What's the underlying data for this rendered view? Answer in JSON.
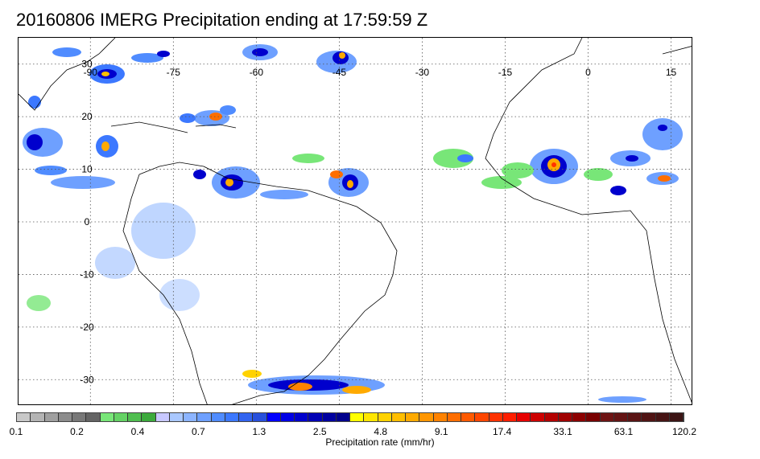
{
  "title": "20160806 IMERG Precipitation ending at 17:59:59 Z",
  "map": {
    "longitude_labels": [
      {
        "text": "-90",
        "lon": -90
      },
      {
        "text": "-75",
        "lon": -75
      },
      {
        "text": "-60",
        "lon": -60
      },
      {
        "text": "-45",
        "lon": -45
      },
      {
        "text": "-30",
        "lon": -30
      },
      {
        "text": "-15",
        "lon": -15
      },
      {
        "text": "0",
        "lon": 0
      },
      {
        "text": "15",
        "lon": 15
      }
    ],
    "latitude_labels": [
      {
        "text": "30",
        "lat": 30
      },
      {
        "text": "20",
        "lat": 20
      },
      {
        "text": "10",
        "lat": 10
      },
      {
        "text": "0",
        "lat": 0
      },
      {
        "text": "-10",
        "lat": -10
      },
      {
        "text": "-20",
        "lat": -20
      },
      {
        "text": "-30",
        "lat": -30
      }
    ],
    "lon_range": [
      -103,
      19
    ],
    "lat_range": [
      -35,
      35
    ],
    "grid": "dotted"
  },
  "colorbar": {
    "colors": [
      "#c8c8c8",
      "#b4b4b4",
      "#a0a0a0",
      "#8c8c8c",
      "#787878",
      "#646464",
      "#78e678",
      "#64d264",
      "#50be50",
      "#3caa3c",
      "#c8c8ff",
      "#aac8ff",
      "#8cb4ff",
      "#6ea0ff",
      "#508cff",
      "#3c78ff",
      "#3264f0",
      "#2850dc",
      "#0000ff",
      "#0000e6",
      "#0000cd",
      "#0000b4",
      "#0000a0",
      "#00008c",
      "#ffff00",
      "#ffe600",
      "#ffd200",
      "#ffbe00",
      "#ffaa00",
      "#ff9600",
      "#ff8200",
      "#ff6e00",
      "#ff5a00",
      "#ff4600",
      "#ff3200",
      "#ff1e00",
      "#e60000",
      "#cd0000",
      "#b40000",
      "#a00000",
      "#8c0000",
      "#780000",
      "#6e1414",
      "#641414",
      "#5a1414",
      "#501414",
      "#461414",
      "#3c1414"
    ],
    "tick_labels": [
      "0.1",
      "0.2",
      "0.4",
      "0.7",
      "1.3",
      "2.5",
      "4.8",
      "9.1",
      "17.4",
      "33.1",
      "63.1",
      "120.2"
    ],
    "label": "Precipitation rate (mm/hr)"
  }
}
